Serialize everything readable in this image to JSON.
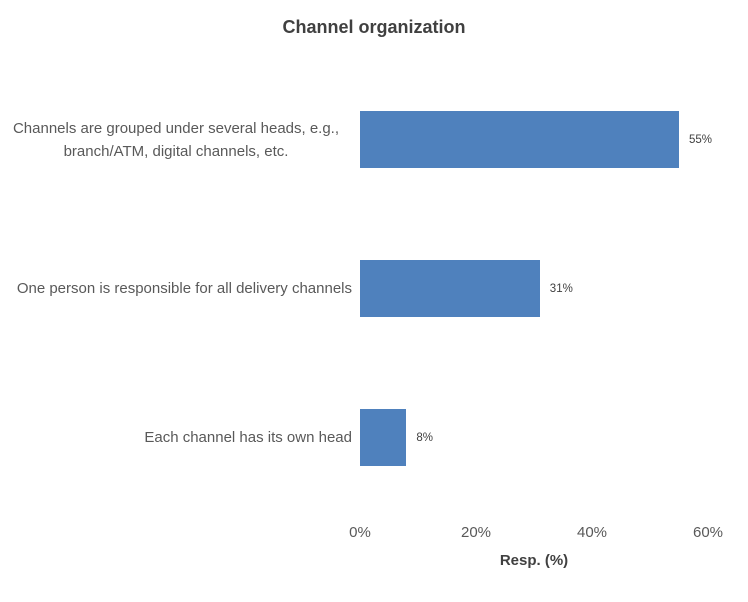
{
  "chart_data": {
    "type": "bar",
    "orientation": "horizontal",
    "title": "Channel organization",
    "categories": [
      "Channels are grouped under several heads, e.g., branch/ATM, digital channels, etc.",
      "One person is responsible for all delivery channels",
      "Each channel has its own head"
    ],
    "values": [
      55,
      31,
      8
    ],
    "value_labels": [
      "55%",
      "31%",
      "8%"
    ],
    "xlabel": "Resp. (%)",
    "x_tick_labels": [
      "0%",
      "20%",
      "40%",
      "60%"
    ],
    "x_tick_values": [
      0,
      20,
      40,
      60
    ],
    "xlim": [
      0,
      60
    ],
    "grid": false,
    "legend": false,
    "axis_lines": false,
    "colors": {
      "bar_fill": "#4F81BD",
      "category_text": "#595959",
      "tick_text": "#595959",
      "value_text": "#404040",
      "title_text": "#404040",
      "background": "#ffffff"
    }
  }
}
